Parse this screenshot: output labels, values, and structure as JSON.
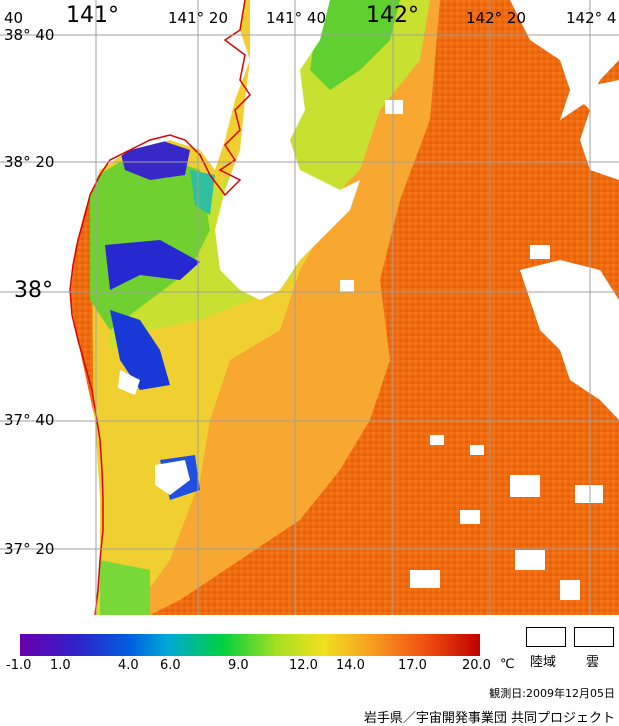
{
  "longitude_labels": [
    "141°",
    "141° 20",
    "141° 40",
    "142°",
    "142° 20",
    "142° 4"
  ],
  "latitude_labels": [
    "38° 40",
    "38° 20",
    "38°",
    "37° 40",
    "37° 20"
  ],
  "corner_label": "40",
  "colorbar": {
    "ticks": [
      "-1.0",
      "1.0",
      "4.0",
      "6.0",
      "9.0",
      "12.0",
      "14.0",
      "17.0",
      "20.0"
    ],
    "unit": "℃",
    "colors": [
      "#6a00b0",
      "#2020d0",
      "#0070e0",
      "#00b0d0",
      "#00d040",
      "#a8e020",
      "#f0e020",
      "#f8a020",
      "#f05010",
      "#c00000"
    ]
  },
  "legend": {
    "land": "陸域",
    "cloud": "雲"
  },
  "observation_date": "観測日:2009年12月05日",
  "credit": "岩手県／宇宙開発事業団  共同プロジェクト",
  "colors": {
    "land": "#ffffff",
    "coastline": "#e00000",
    "grid": "#a0a0a0",
    "sst_warm": "#f06a10",
    "sst_mid": "#f8b030",
    "sst_cool": "#d8e040",
    "sst_cold": "#60d030",
    "sst_coldest": "#3020c0"
  }
}
